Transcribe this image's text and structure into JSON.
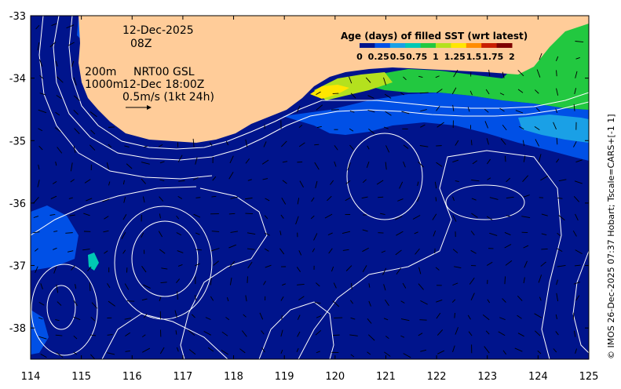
{
  "map": {
    "date": "12-Dec-2025",
    "hour": "08Z",
    "contour_200m": "200m",
    "contour_1000m": "1000m",
    "product": "NRT00 GSL",
    "valid_time": "12-Dec 18:00Z",
    "scale_vector_label": "0.5m/s (1kt 24h)",
    "credit": "© IMOS 26-Dec-2025 07:37 Hobart; Tscale=CARS+[-1 1]",
    "lon_range": [
      114,
      125
    ],
    "lat_range": [
      -38.5,
      -33
    ],
    "lon_ticks": [
      "114",
      "115",
      "116",
      "117",
      "118",
      "119",
      "120",
      "121",
      "122",
      "123",
      "124",
      "125"
    ],
    "lat_ticks": [
      "-33",
      "-34",
      "-35",
      "-36",
      "-37",
      "-38"
    ],
    "colors": {
      "ocean": "#00148c",
      "land": "#ffcc99",
      "contour": "#ffffff",
      "arrow": "#000000"
    }
  },
  "colorbar": {
    "title": "Age (days) of filled SST (wrt latest)",
    "ticks": [
      "0",
      "0.25",
      "0.5",
      "0.75",
      "1",
      "1.25",
      "1.5",
      "1.75",
      "2"
    ],
    "range": [
      0,
      2
    ],
    "colors": [
      "#00148c",
      "#0050e6",
      "#1aa0e6",
      "#00c8b4",
      "#22c840",
      "#b4e11e",
      "#ffe600",
      "#ff8c00",
      "#c81e00",
      "#7d0000"
    ]
  }
}
